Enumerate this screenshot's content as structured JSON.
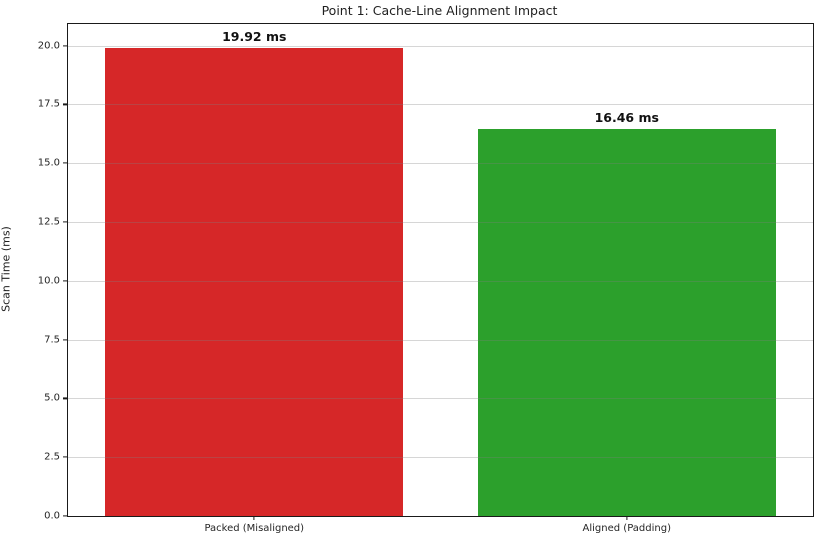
{
  "chart_data": {
    "type": "bar",
    "title": "Point 1: Cache-Line Alignment Impact",
    "xlabel": "",
    "ylabel": "Scan Time (ms)",
    "categories": [
      "Packed (Misaligned)",
      "Aligned (Padding)"
    ],
    "values": [
      19.92,
      16.46
    ],
    "value_labels": [
      "19.92 ms",
      "16.46 ms"
    ],
    "bar_colors": [
      "#d62728",
      "#2ca02c"
    ],
    "ytick_values": [
      0.0,
      2.5,
      5.0,
      7.5,
      10.0,
      12.5,
      15.0,
      17.5,
      20.0
    ],
    "ytick_labels": [
      "0.0",
      "2.5",
      "5.0",
      "7.5",
      "10.0",
      "12.5",
      "15.0",
      "17.5",
      "20.0"
    ],
    "ylim": [
      0,
      20.92
    ],
    "grid": "horizontal",
    "legend": "none",
    "background_color": "#ffffff",
    "spine_color": "#1a1a1a"
  }
}
